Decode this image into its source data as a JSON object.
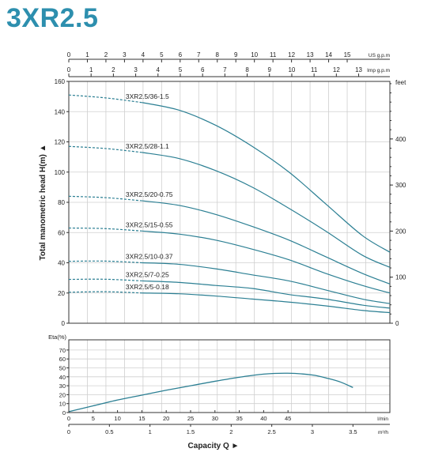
{
  "page": {
    "title": "3XR2.5"
  },
  "colors": {
    "title": "#2d8fae",
    "curve": "#2b7f93",
    "grid": "#cfcfcf",
    "axis": "#333333"
  },
  "chart_data": [
    {
      "type": "line",
      "title": "",
      "xlabel": "",
      "ylabel": "Total manometric head H(m)",
      "xlim": [
        0,
        3.5
      ],
      "ylim": [
        0,
        160
      ],
      "grid": true,
      "axes": {
        "y_left": {
          "ticks": [
            "0",
            "20",
            "40",
            "60",
            "80",
            "100",
            "120",
            "140",
            "160"
          ]
        },
        "y_right": {
          "label": "feet",
          "ticks": [
            "0",
            "100",
            "200",
            "300",
            "400"
          ]
        },
        "x_top_us": {
          "label": "US g.p.m",
          "ticks": [
            "0",
            "1",
            "2",
            "3",
            "4",
            "5",
            "6",
            "7",
            "8",
            "9",
            "10",
            "11",
            "12",
            "13",
            "14",
            "15"
          ]
        },
        "x_top_imp": {
          "label": "Imp g.p.m",
          "ticks": [
            "0",
            "1",
            "2",
            "3",
            "4",
            "5",
            "6",
            "7",
            "8",
            "9",
            "10",
            "11",
            "12",
            "13"
          ]
        }
      },
      "series": [
        {
          "name": "3XR2.5/36-1.5",
          "dashed_x": [
            0,
            0.8
          ],
          "x": [
            0.8,
            1.2,
            1.6,
            2.0,
            2.4,
            2.8,
            3.2,
            3.5
          ],
          "y": [
            146,
            141,
            131,
            117,
            100,
            79,
            58,
            47
          ]
        },
        {
          "name": "3XR2.5/28-1.1",
          "dashed_x": [
            0,
            0.8
          ],
          "x": [
            0.8,
            1.2,
            1.6,
            2.0,
            2.4,
            2.8,
            3.2,
            3.5
          ],
          "y": [
            113,
            109,
            101,
            90,
            76,
            61,
            45,
            37
          ]
        },
        {
          "name": "3XR2.5/20-0.75",
          "dashed_x": [
            0,
            0.8
          ],
          "x": [
            0.8,
            1.2,
            1.6,
            2.0,
            2.4,
            2.8,
            3.2,
            3.5
          ],
          "y": [
            81,
            78,
            72,
            64,
            55,
            44,
            33,
            26
          ]
        },
        {
          "name": "3XR2.5/15-0.55",
          "dashed_x": [
            0,
            0.8
          ],
          "x": [
            0.8,
            1.2,
            1.6,
            2.0,
            2.4,
            2.8,
            3.2,
            3.5
          ],
          "y": [
            61,
            59,
            55,
            49,
            42,
            33,
            25,
            20
          ]
        },
        {
          "name": "3XR2.5/10-0.37",
          "dashed_x": [
            0,
            0.8
          ],
          "x": [
            0.8,
            1.2,
            1.6,
            2.0,
            2.4,
            2.8,
            3.2,
            3.5
          ],
          "y": [
            40,
            39,
            36,
            32,
            28,
            22,
            16,
            13
          ]
        },
        {
          "name": "3XR2.5/7-0.25",
          "dashed_x": [
            0,
            0.8
          ],
          "x": [
            0.8,
            1.2,
            1.6,
            2.0,
            2.4,
            2.8,
            3.2,
            3.5
          ],
          "y": [
            28,
            27,
            25,
            23,
            19,
            16,
            12,
            10
          ]
        },
        {
          "name": "3XR2.5/5-0.18",
          "dashed_x": [
            0,
            0.8
          ],
          "x": [
            0.8,
            1.2,
            1.6,
            2.0,
            2.4,
            2.8,
            3.2,
            3.5
          ],
          "y": [
            20,
            19.5,
            18,
            16,
            14,
            11.5,
            8.5,
            7
          ]
        }
      ],
      "dash_start_y": [
        151,
        117,
        84,
        63,
        41,
        29,
        20.5
      ]
    },
    {
      "type": "line",
      "title": "",
      "ylabel": "Eta(%)",
      "xlim": [
        0,
        3.5
      ],
      "ylim": [
        0,
        70
      ],
      "grid": true,
      "axes": {
        "y_left": {
          "ticks": [
            "0",
            "10",
            "20",
            "30",
            "40",
            "50",
            "60",
            "70"
          ]
        },
        "x_bottom_lmin": {
          "label": "l/min",
          "ticks": [
            "0",
            "5",
            "10",
            "15",
            "20",
            "25",
            "30",
            "35",
            "40",
            "45"
          ]
        },
        "x_bottom_m3h": {
          "label": "m³/h",
          "ticks": [
            "0",
            "0.5",
            "1",
            "1.5",
            "2",
            "2.5",
            "3",
            "3.5"
          ]
        }
      },
      "series": [
        {
          "name": "",
          "x": [
            0,
            0.3,
            0.6,
            0.9,
            1.2,
            1.5,
            1.8,
            2.1,
            2.4,
            2.7,
            3.0,
            3.2,
            3.35,
            3.5
          ],
          "y": [
            1,
            7.5,
            14,
            19.5,
            25,
            30,
            35,
            39.5,
            43,
            44,
            42,
            38,
            34,
            28
          ]
        }
      ],
      "xlabel": "Capacity Q"
    }
  ]
}
